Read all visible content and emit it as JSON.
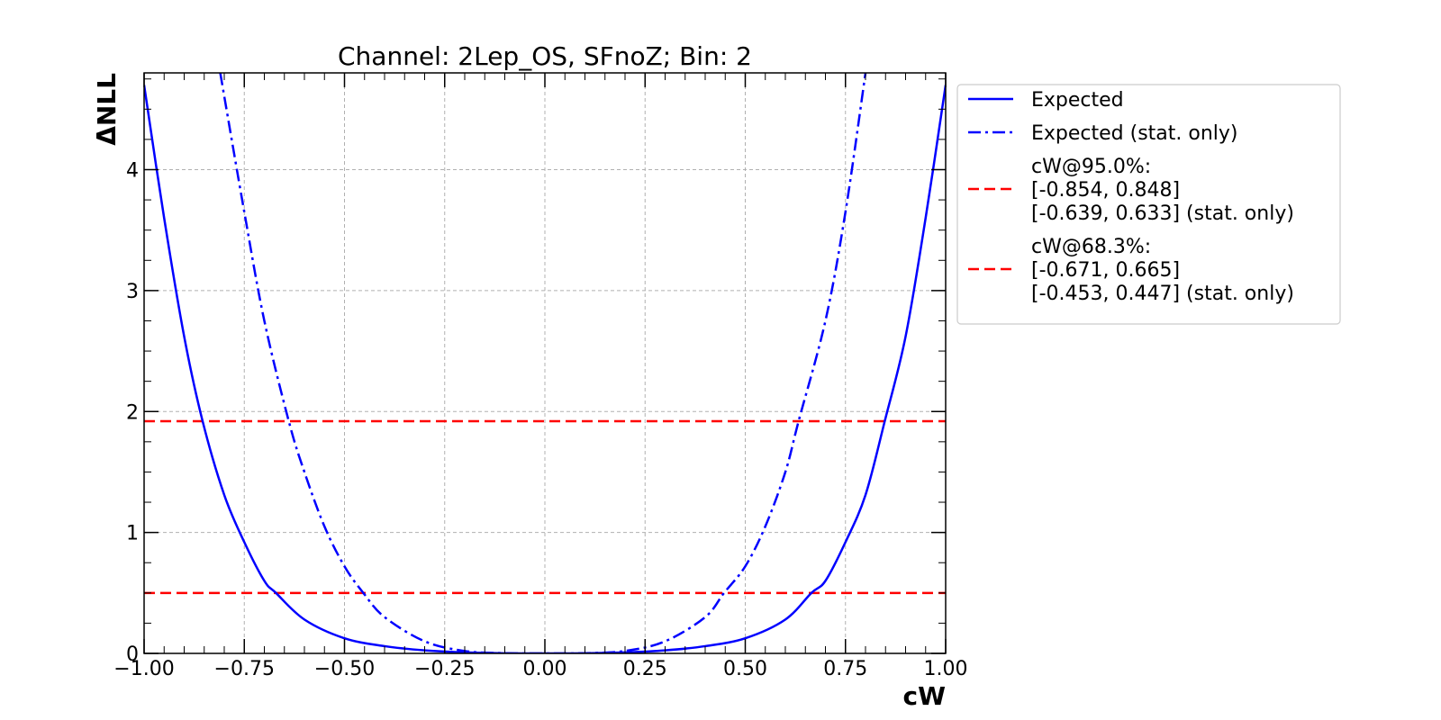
{
  "chart_data": {
    "type": "line",
    "title": "Channel: 2Lep_OS, SFnoZ; Bin: 2",
    "xlabel": "cW",
    "ylabel": "ΔNLL",
    "xlim": [
      -1.0,
      1.0
    ],
    "ylim": [
      0,
      4.8
    ],
    "xticks": [
      -1.0,
      -0.75,
      -0.5,
      -0.25,
      0.0,
      0.25,
      0.5,
      0.75,
      1.0
    ],
    "xtick_labels": [
      "−1.00",
      "−0.75",
      "−0.50",
      "−0.25",
      "0.00",
      "0.25",
      "0.50",
      "0.75",
      "1.00"
    ],
    "yticks": [
      0,
      1,
      2,
      3,
      4
    ],
    "ytick_labels": [
      "0",
      "1",
      "2",
      "3",
      "4"
    ],
    "grid": true,
    "legend_position": "outside-right-top",
    "series": [
      {
        "name": "Expected",
        "color": "#0000ff",
        "style": "solid",
        "x": [
          -1.0,
          -0.95,
          -0.9,
          -0.854,
          -0.8,
          -0.75,
          -0.7,
          -0.671,
          -0.6,
          -0.5,
          -0.4,
          -0.3,
          -0.2,
          -0.1,
          -0.003,
          0.1,
          0.2,
          0.3,
          0.4,
          0.5,
          0.6,
          0.665,
          0.7,
          0.75,
          0.8,
          0.848,
          0.9,
          0.95,
          1.0
        ],
        "y": [
          4.7,
          3.6,
          2.62,
          1.92,
          1.31,
          0.92,
          0.6,
          0.5,
          0.28,
          0.125,
          0.06,
          0.025,
          0.008,
          0.001,
          0.0,
          0.001,
          0.008,
          0.025,
          0.06,
          0.125,
          0.28,
          0.5,
          0.6,
          0.92,
          1.31,
          1.92,
          2.62,
          3.6,
          4.7
        ]
      },
      {
        "name": "Expected (stat. only)",
        "color": "#0000ff",
        "style": "dashdot",
        "x": [
          -0.81,
          -0.75,
          -0.7,
          -0.639,
          -0.6,
          -0.55,
          -0.5,
          -0.453,
          -0.4,
          -0.3,
          -0.2,
          -0.1,
          -0.003,
          0.1,
          0.2,
          0.3,
          0.4,
          0.447,
          0.5,
          0.55,
          0.6,
          0.633,
          0.7,
          0.75,
          0.8
        ],
        "y": [
          4.8,
          3.65,
          2.75,
          1.92,
          1.5,
          1.05,
          0.72,
          0.5,
          0.3,
          0.1,
          0.02,
          0.002,
          0.0,
          0.002,
          0.02,
          0.1,
          0.3,
          0.5,
          0.72,
          1.05,
          1.5,
          1.92,
          2.75,
          3.65,
          4.8
        ]
      }
    ],
    "hlines": [
      {
        "y": 1.92,
        "color": "#ff0000",
        "style": "dashed"
      },
      {
        "y": 0.5,
        "color": "#ff0000",
        "style": "dashed"
      }
    ],
    "legend": [
      {
        "style": "solid",
        "color": "#0000ff",
        "lines": [
          "Expected"
        ]
      },
      {
        "style": "dashdot",
        "color": "#0000ff",
        "lines": [
          "Expected (stat. only)"
        ]
      },
      {
        "style": "dashed",
        "color": "#ff0000",
        "lines": [
          "cW@95.0%:",
          "[-0.854, 0.848]",
          "[-0.639, 0.633] (stat. only)"
        ]
      },
      {
        "style": "dashed",
        "color": "#ff0000",
        "lines": [
          "cW@68.3%:",
          "[-0.671, 0.665]",
          "[-0.453, 0.447] (stat. only)"
        ]
      }
    ]
  }
}
